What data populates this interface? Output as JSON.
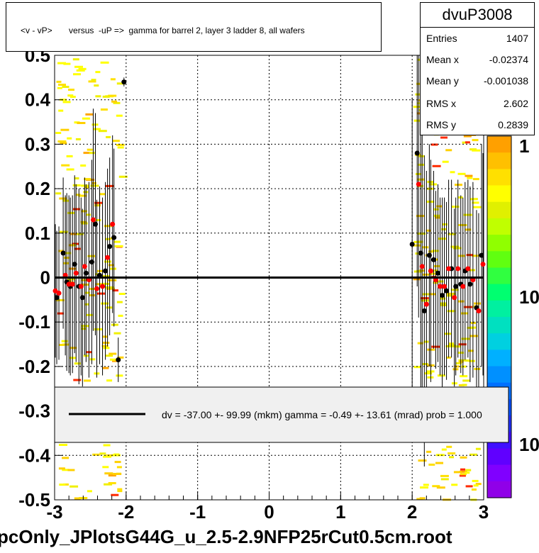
{
  "title": "<v - vP>       versus  -uP =>  gamma for barrel 2, layer 3 ladder 8, all wafers",
  "footer": "pcOnly_JPlotsG44G_u_2.5-2.9NFP25rCut0.5cm.root",
  "stats": {
    "name": "dvuP3008",
    "rows": [
      {
        "label": "Entries",
        "value": "1407"
      },
      {
        "label": "Mean x",
        "value": "-0.02374"
      },
      {
        "label": "Mean y",
        "value": "-0.001038"
      },
      {
        "label": "RMS x",
        "value": "2.602"
      },
      {
        "label": "RMS y",
        "value": "0.2839"
      }
    ]
  },
  "legend_text": "dv =  -37.00 +- 99.99 (mkm) gamma =   -0.49 +- 13.61 (mrad) prob = 1.000",
  "colors": {
    "black_series": "#000000",
    "red_series": "#ff0000",
    "fit_line": "#000000"
  },
  "chart_data": {
    "type": "scatter",
    "xlim": [
      -3,
      3
    ],
    "ylim": [
      -0.5,
      0.5
    ],
    "x_ticks": [
      "-3",
      "-2",
      "-1",
      "0",
      "1",
      "2",
      "3"
    ],
    "y_ticks": [
      "-0.5",
      "-0.4",
      "-0.3",
      "-0.2",
      "-0.1",
      "0",
      "0.1",
      "0.2",
      "0.3",
      "0.4",
      "0.5"
    ],
    "colorbar_labels": [
      "1",
      "10",
      "10"
    ],
    "grid": true,
    "fit_line": {
      "x": [
        -3,
        3
      ],
      "y": [
        0.0,
        0.0
      ]
    },
    "series": [
      {
        "color": "black",
        "points": [
          {
            "x": -2.97,
            "y": -0.045,
            "err": 0.15
          },
          {
            "x": -2.88,
            "y": 0.055,
            "err": 0.17
          },
          {
            "x": -2.83,
            "y": -0.01,
            "err": 0.2
          },
          {
            "x": -2.78,
            "y": -0.02,
            "err": 0.2
          },
          {
            "x": -2.72,
            "y": 0.03,
            "err": 0.2
          },
          {
            "x": -2.66,
            "y": -0.02,
            "err": 0.22
          },
          {
            "x": -2.61,
            "y": -0.045,
            "err": 0.2
          },
          {
            "x": -2.56,
            "y": 0.01,
            "err": 0.2
          },
          {
            "x": -2.48,
            "y": 0.035,
            "err": 0.23
          },
          {
            "x": -2.43,
            "y": 0.12,
            "err": 0.25
          },
          {
            "x": -2.37,
            "y": 0.005,
            "err": 0.2
          },
          {
            "x": -2.29,
            "y": 0.015,
            "err": 0.2
          },
          {
            "x": -2.23,
            "y": 0.07,
            "err": 0.2
          },
          {
            "x": -2.17,
            "y": 0.09,
            "err": 0.2
          },
          {
            "x": -2.11,
            "y": -0.185,
            "err": 0.05
          },
          {
            "x": -2.03,
            "y": 0.44,
            "err": 0.01
          },
          {
            "x": 2.0,
            "y": 0.075,
            "err": 0.33
          },
          {
            "x": 2.07,
            "y": 0.28,
            "err": 0.3
          },
          {
            "x": 2.12,
            "y": 0.055,
            "err": 0.33
          },
          {
            "x": 2.17,
            "y": -0.075,
            "err": 0.35
          },
          {
            "x": 2.24,
            "y": 0.05,
            "err": 0.25
          },
          {
            "x": 2.3,
            "y": 0.04,
            "err": 0.2
          },
          {
            "x": 2.36,
            "y": 0.01,
            "err": 0.2
          },
          {
            "x": 2.42,
            "y": -0.04,
            "err": 0.22
          },
          {
            "x": 2.48,
            "y": -0.03,
            "err": 0.2
          },
          {
            "x": 2.55,
            "y": 0.02,
            "err": 0.2
          },
          {
            "x": 2.61,
            "y": -0.02,
            "err": 0.2
          },
          {
            "x": 2.68,
            "y": -0.015,
            "err": 0.2
          },
          {
            "x": 2.74,
            "y": 0.015,
            "err": 0.2
          },
          {
            "x": 2.81,
            "y": -0.015,
            "err": 0.22
          },
          {
            "x": 2.9,
            "y": -0.068,
            "err": 0.22
          },
          {
            "x": 2.97,
            "y": 0.05,
            "err": 0.25
          }
        ]
      },
      {
        "color": "red",
        "points": [
          {
            "x": -2.99,
            "y": -0.03,
            "err": 0.15
          },
          {
            "x": -2.94,
            "y": -0.035,
            "err": 0.15
          },
          {
            "x": -2.85,
            "y": 0.005,
            "err": 0.18
          },
          {
            "x": -2.8,
            "y": -0.015,
            "err": 0.2
          },
          {
            "x": -2.75,
            "y": -0.015,
            "err": 0.2
          },
          {
            "x": -2.7,
            "y": 0.01,
            "err": 0.2
          },
          {
            "x": -2.63,
            "y": -0.02,
            "err": 0.2
          },
          {
            "x": -2.58,
            "y": 0.025,
            "err": 0.2
          },
          {
            "x": -2.52,
            "y": -0.005,
            "err": 0.22
          },
          {
            "x": -2.46,
            "y": 0.13,
            "err": 0.25
          },
          {
            "x": -2.41,
            "y": -0.025,
            "err": 0.2
          },
          {
            "x": -2.33,
            "y": -0.02,
            "err": 0.2
          },
          {
            "x": -2.26,
            "y": 0.045,
            "err": 0.2
          },
          {
            "x": -2.19,
            "y": 0.12,
            "err": 0.2
          },
          {
            "x": 2.09,
            "y": 0.21,
            "err": 0.3
          },
          {
            "x": 2.14,
            "y": 0.025,
            "err": 0.33
          },
          {
            "x": 2.2,
            "y": -0.06,
            "err": 0.3
          },
          {
            "x": 2.26,
            "y": 0.015,
            "err": 0.25
          },
          {
            "x": 2.33,
            "y": -0.005,
            "err": 0.2
          },
          {
            "x": 2.39,
            "y": -0.02,
            "err": 0.2
          },
          {
            "x": 2.45,
            "y": -0.02,
            "err": 0.2
          },
          {
            "x": 2.51,
            "y": 0.02,
            "err": 0.2
          },
          {
            "x": 2.59,
            "y": -0.045,
            "err": 0.2
          },
          {
            "x": 2.64,
            "y": 0.02,
            "err": 0.2
          },
          {
            "x": 2.71,
            "y": -0.02,
            "err": 0.2
          },
          {
            "x": 2.78,
            "y": 0.02,
            "err": 0.2
          },
          {
            "x": 2.85,
            "y": -0.005,
            "err": 0.22
          },
          {
            "x": 2.93,
            "y": -0.075,
            "err": 0.22
          },
          {
            "x": 2.99,
            "y": 0.03,
            "err": 0.25
          }
        ]
      }
    ]
  }
}
